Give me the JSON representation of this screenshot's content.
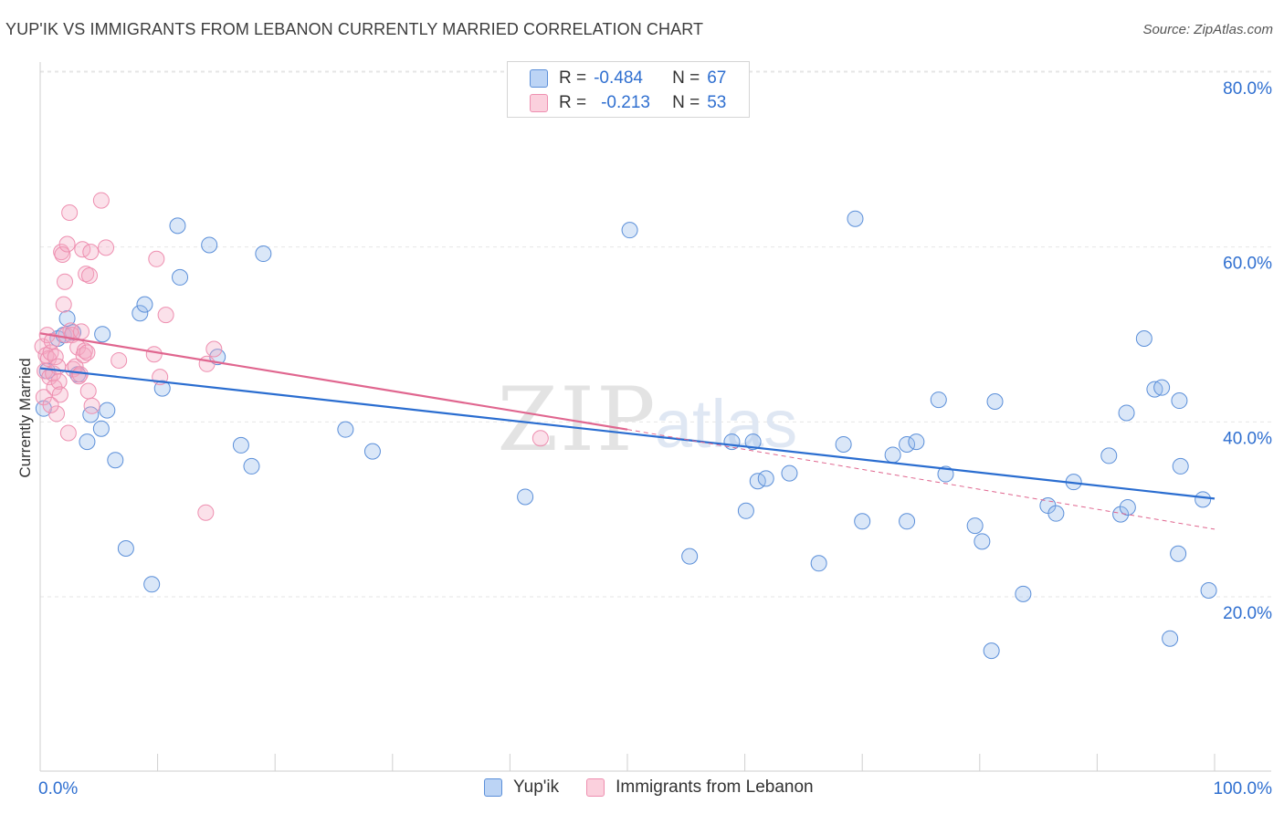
{
  "header": {
    "title": "YUP'IK VS IMMIGRANTS FROM LEBANON CURRENTLY MARRIED CORRELATION CHART",
    "source": "Source: ZipAtlas.com"
  },
  "watermark": {
    "zip": "ZIP",
    "atlas": "atlas"
  },
  "legend_top": {
    "rows": [
      {
        "r_label": "R =",
        "r_value": "-0.484",
        "n_label": "N =",
        "n_value": "67"
      },
      {
        "r_label": "R =",
        "r_value": "-0.213",
        "n_label": "N =",
        "n_value": "53"
      }
    ]
  },
  "chart_data": {
    "type": "scatter",
    "xlabel": "",
    "ylabel": "Currently Married",
    "xlim": [
      0,
      100
    ],
    "ylim": [
      0,
      85
    ],
    "x_tick_labels": [
      "0.0%",
      "100.0%"
    ],
    "y_ticks": [
      20,
      40,
      60,
      80
    ],
    "y_tick_labels": [
      "20.0%",
      "40.0%",
      "60.0%",
      "80.0%"
    ],
    "grid": true,
    "legend_position": "bottom",
    "colors": {
      "yupik": "#5b8fd9",
      "lebanon": "#ee8fb0",
      "yupik_line": "#2a6dd0",
      "lebanon_line": "#e0668f",
      "axis_text": "#2f6fd0"
    },
    "series": [
      {
        "name": "Yup'ik",
        "trend": {
          "x": [
            0,
            100
          ],
          "y": [
            47.8,
            32.9
          ]
        },
        "points": [
          [
            0.3,
            43.2
          ],
          [
            1.5,
            51.2
          ],
          [
            2.0,
            51.6
          ],
          [
            2.3,
            53.5
          ],
          [
            2.8,
            51.9
          ],
          [
            3.2,
            47.1
          ],
          [
            4.0,
            39.4
          ],
          [
            4.3,
            42.5
          ],
          [
            5.2,
            40.9
          ],
          [
            5.3,
            51.7
          ],
          [
            5.7,
            43.0
          ],
          [
            6.4,
            37.3
          ],
          [
            7.3,
            27.2
          ],
          [
            8.5,
            54.1
          ],
          [
            8.9,
            55.1
          ],
          [
            9.5,
            23.1
          ],
          [
            10.4,
            45.5
          ],
          [
            11.7,
            64.1
          ],
          [
            11.9,
            58.2
          ],
          [
            14.4,
            61.9
          ],
          [
            15.1,
            49.1
          ],
          [
            17.1,
            39.0
          ],
          [
            18.0,
            36.6
          ],
          [
            19.0,
            60.9
          ],
          [
            26.0,
            40.8
          ],
          [
            28.3,
            38.3
          ],
          [
            41.3,
            33.1
          ],
          [
            50.2,
            63.6
          ],
          [
            55.3,
            26.3
          ],
          [
            58.9,
            39.4
          ],
          [
            60.1,
            31.5
          ],
          [
            60.7,
            39.4
          ],
          [
            61.1,
            34.9
          ],
          [
            61.8,
            35.2
          ],
          [
            63.8,
            35.8
          ],
          [
            66.3,
            25.5
          ],
          [
            68.4,
            39.1
          ],
          [
            69.4,
            64.9
          ],
          [
            70.0,
            30.3
          ],
          [
            72.6,
            37.9
          ],
          [
            73.8,
            30.3
          ],
          [
            73.8,
            39.1
          ],
          [
            74.6,
            39.4
          ],
          [
            76.5,
            44.2
          ],
          [
            77.1,
            35.7
          ],
          [
            79.6,
            29.8
          ],
          [
            80.2,
            28.0
          ],
          [
            81.0,
            15.5
          ],
          [
            81.3,
            44.0
          ],
          [
            83.7,
            22.0
          ],
          [
            85.8,
            32.1
          ],
          [
            86.5,
            31.2
          ],
          [
            88.0,
            34.8
          ],
          [
            91.0,
            37.8
          ],
          [
            92.0,
            31.1
          ],
          [
            92.5,
            42.7
          ],
          [
            92.6,
            31.9
          ],
          [
            94.0,
            51.2
          ],
          [
            94.9,
            45.4
          ],
          [
            95.5,
            45.6
          ],
          [
            96.2,
            16.9
          ],
          [
            96.9,
            26.6
          ],
          [
            97.0,
            44.1
          ],
          [
            97.1,
            36.6
          ],
          [
            99.0,
            32.8
          ],
          [
            99.5,
            22.4
          ],
          [
            0.6,
            47.5
          ]
        ]
      },
      {
        "name": "Immigrants from Lebanon",
        "trend": {
          "x": [
            0,
            50
          ],
          "y": [
            51.8,
            40.8
          ]
        },
        "dashed_extension": {
          "x": [
            50,
            100
          ],
          "y": [
            40.8,
            29.4
          ]
        },
        "points": [
          [
            0.2,
            50.3
          ],
          [
            0.3,
            44.5
          ],
          [
            0.4,
            47.5
          ],
          [
            0.5,
            49.3
          ],
          [
            0.6,
            51.6
          ],
          [
            0.7,
            48.9
          ],
          [
            0.8,
            46.8
          ],
          [
            0.9,
            49.6
          ],
          [
            1.0,
            50.9
          ],
          [
            1.1,
            47.2
          ],
          [
            1.2,
            45.6
          ],
          [
            1.3,
            49.1
          ],
          [
            1.4,
            42.6
          ],
          [
            1.5,
            48.0
          ],
          [
            1.6,
            46.3
          ],
          [
            1.7,
            44.8
          ],
          [
            1.8,
            61.1
          ],
          [
            1.9,
            60.8
          ],
          [
            2.0,
            55.1
          ],
          [
            2.1,
            57.7
          ],
          [
            2.2,
            51.6
          ],
          [
            2.3,
            62.0
          ],
          [
            2.4,
            40.4
          ],
          [
            2.5,
            65.6
          ],
          [
            2.6,
            52.1
          ],
          [
            2.7,
            51.6
          ],
          [
            2.8,
            47.7
          ],
          [
            3.0,
            48.0
          ],
          [
            3.2,
            50.2
          ],
          [
            3.3,
            46.9
          ],
          [
            3.4,
            47.1
          ],
          [
            3.5,
            52.0
          ],
          [
            3.6,
            61.4
          ],
          [
            3.7,
            49.3
          ],
          [
            3.8,
            49.8
          ],
          [
            3.9,
            58.6
          ],
          [
            4.0,
            49.6
          ],
          [
            4.1,
            45.2
          ],
          [
            4.2,
            58.4
          ],
          [
            4.3,
            61.1
          ],
          [
            4.4,
            43.5
          ],
          [
            5.2,
            67.0
          ],
          [
            5.6,
            61.6
          ],
          [
            6.7,
            48.7
          ],
          [
            9.7,
            49.4
          ],
          [
            9.9,
            60.3
          ],
          [
            10.2,
            46.8
          ],
          [
            10.7,
            53.9
          ],
          [
            14.2,
            48.3
          ],
          [
            14.8,
            50.0
          ],
          [
            14.1,
            31.3
          ],
          [
            42.6,
            39.8
          ],
          [
            0.9,
            43.6
          ]
        ]
      }
    ]
  },
  "legend_bottom": {
    "items": [
      {
        "label": "Yup'ik"
      },
      {
        "label": "Immigrants from Lebanon"
      }
    ]
  }
}
